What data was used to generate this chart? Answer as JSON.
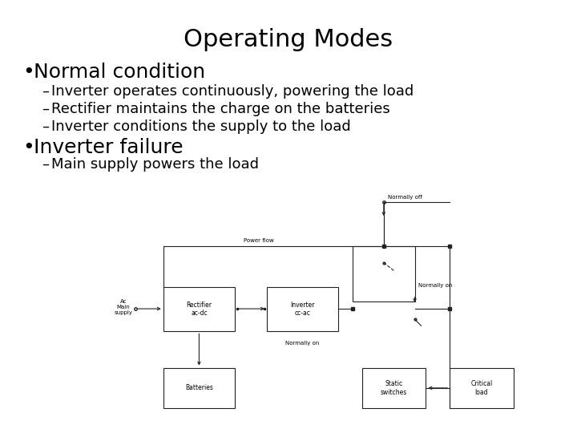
{
  "title": "Operating Modes",
  "title_fontsize": 22,
  "bg_color": "#ffffff",
  "text_color": "#000000",
  "bullet1": "Normal condition",
  "bullet1_fontsize": 18,
  "sub1_1": "Inverter operates continuously, powering the load",
  "sub1_2": "Rectifier maintains the charge on the batteries",
  "sub1_3": "Inverter conditions the supply to the load",
  "sub_fontsize": 13,
  "bullet2": "Inverter failure",
  "bullet2_fontsize": 18,
  "sub2_1": "Main supply powers the load",
  "diag_fs": 5.5,
  "diag_lw": 0.8
}
